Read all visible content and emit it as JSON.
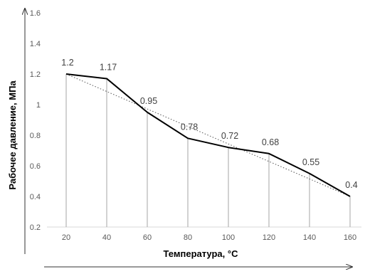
{
  "chart_data": {
    "type": "line",
    "xlabel": "Температура, °C",
    "ylabel": "Рабочее давление, МПа",
    "x": [
      20,
      40,
      60,
      80,
      100,
      120,
      140,
      160
    ],
    "x_tick_labels": [
      "20",
      "40",
      "60",
      "80",
      "100",
      "120",
      "140",
      "160"
    ],
    "series": [
      {
        "values": [
          1.2,
          1.17,
          0.95,
          0.78,
          0.72,
          0.68,
          0.55,
          0.4
        ],
        "data_labels": [
          "1.2",
          "1.17",
          "0.95",
          "0.78",
          "0.72",
          "0.68",
          "0.55",
          "0.4"
        ],
        "color": "#000000"
      }
    ],
    "trendline": {
      "type": "linear",
      "style": "dotted",
      "from": [
        20,
        1.2
      ],
      "to": [
        160,
        0.4
      ]
    },
    "ylim": [
      0.2,
      1.6
    ],
    "y_ticks": [
      0.2,
      0.4,
      0.6,
      0.8,
      1,
      1.2,
      1.4,
      1.6
    ],
    "y_tick_labels": [
      "0.2",
      "0.4",
      "0.6",
      "0.8",
      "1",
      "1.2",
      "1.4",
      "1.6"
    ],
    "drop_lines": true,
    "grid": false,
    "legend": "none"
  }
}
